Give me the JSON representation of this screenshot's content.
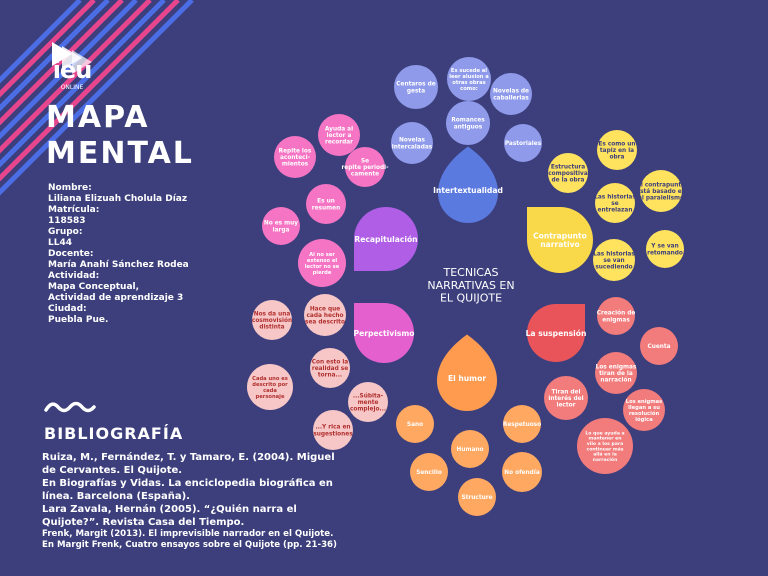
{
  "header": {
    "logo_text": "ieu",
    "logo_subtext": "ONLINE",
    "logo_icon": "ieu-logo-icon",
    "title_line1": "MAPA",
    "title_line2": "MENTAL"
  },
  "info": [
    "Nombre:",
    "Liliana Elizuah Cholula Díaz",
    "Matrícula:",
    "118583",
    "Grupo:",
    "LL44",
    "Docente:",
    "María Anahí Sánchez Rodea",
    "Actividad:",
    "Mapa Conceptual,",
    "Actividad de aprendizaje 3",
    "Ciudad:",
    "Puebla Pue."
  ],
  "bibliography": {
    "title": "BIBLIOGRAFÍA",
    "lines": [
      "Ruiza, M., Fernández, T. y Tamaro, E. (2004). Miguel",
      "de Cervantes. El Quijote.",
      "En Biografías y Vidas. La enciclopedia biográfica en",
      "línea. Barcelona (España).",
      "Lara Zavala, Hernán (2005). “¿Quién narra el",
      "Quijote?”. Revista Casa del Tiempo."
    ],
    "small_lines": [
      "Frenk, Margit (2013). El imprevisible narrador en el Quijote.",
      "En Margit Frenk, Cuatro ensayos sobre el Quijote (pp. 21-36)"
    ]
  },
  "colors": {
    "background": "#3c3f7c",
    "stripe_pink": "#e8458f",
    "stripe_blue": "#4b6ee6",
    "intertextualidad": "#5b7ae0",
    "contrapunto": "#f9d84a",
    "suspension": "#e9545a",
    "humor": "#ff9b4f",
    "perpectivismo": "#e560cf",
    "recapitulacion": "#b05ee6"
  },
  "mindmap": {
    "center": [
      "TECNICAS",
      "NARRATIVAS EN",
      "EL QUIJOTE"
    ],
    "branches": [
      {
        "label": "Intertextualidad",
        "color": "#5b7ae0",
        "bubble": "#8f9bea",
        "text": "#ffffff",
        "nodes": [
          {
            "label": [
              "Centaros de",
              "gesta"
            ]
          },
          {
            "label": [
              "Es sucede al",
              "leer alusion a",
              "otras obras",
              "como:"
            ]
          },
          {
            "label": [
              "Novelas de",
              "caballerias"
            ]
          },
          {
            "label": [
              "Romances",
              "antiguos"
            ]
          },
          {
            "label": [
              "Novelas",
              "intercaladas"
            ]
          },
          {
            "label": [
              "Pastoriales"
            ]
          }
        ]
      },
      {
        "label": "Contrapunto narrativo",
        "color": "#f9d84a",
        "bubble": "#ffe35e",
        "text": "#3c3f7c",
        "nodes": [
          {
            "label": [
              "Estructura",
              "compositiva",
              "de la obra"
            ]
          },
          {
            "label": [
              "Es como un",
              "tapiz en la",
              "obra"
            ]
          },
          {
            "label": [
              "El contrapunto",
              "está basado en",
              "el paralelismo"
            ]
          },
          {
            "label": [
              "Las historias",
              "se",
              "entrelazan"
            ]
          },
          {
            "label": [
              "Y se van",
              "retomando"
            ]
          },
          {
            "label": [
              "Las historias",
              "se van",
              "sucediendo"
            ]
          }
        ]
      },
      {
        "label": "La suspensión",
        "color": "#e9545a",
        "bubble": "#f27b7c",
        "text": "#ffffff",
        "nodes": [
          {
            "label": [
              "Creación de",
              "enigmas"
            ]
          },
          {
            "label": [
              "Cuenta"
            ]
          },
          {
            "label": [
              "Los enigmas",
              "tiran de la",
              "narración"
            ]
          },
          {
            "label": [
              "Los enigmas",
              "llegan a su",
              "resolución",
              "lógica"
            ]
          },
          {
            "label": [
              "Tiran del",
              "interés del",
              "lector"
            ]
          },
          {
            "label": [
              "Lo que ayuda a",
              "mantener en",
              "vilo a los para",
              "continuar más",
              "allá en la",
              "narración"
            ]
          }
        ]
      },
      {
        "label": "El humor",
        "color": "#ff9b4f",
        "bubble": "#ffa861",
        "text": "#ffffff",
        "nodes": [
          {
            "label": [
              "Sano"
            ]
          },
          {
            "label": [
              "Respetuoso"
            ]
          },
          {
            "label": [
              "Humano"
            ]
          },
          {
            "label": [
              "Sencillo"
            ]
          },
          {
            "label": [
              "No ofendía"
            ]
          },
          {
            "label": [
              "Structure"
            ]
          }
        ]
      },
      {
        "label": "Perpectivismo",
        "color": "#e560cf",
        "bubble": "#f7c7c7",
        "text": "#b0302f",
        "nodes": [
          {
            "label": [
              "Nos da una",
              "cosmovisión",
              "distinta"
            ]
          },
          {
            "label": [
              "Hace que",
              "cada hecho",
              "sea descrito"
            ]
          },
          {
            "label": [
              "Con esto la",
              "realidad se",
              "torna..."
            ]
          },
          {
            "label": [
              "Cada uno es",
              "descrito por",
              "cada",
              "personaje"
            ]
          },
          {
            "label": [
              "...Súbita-",
              "mente",
              "complejo..."
            ]
          },
          {
            "label": [
              "...Y rica en",
              "sugestiones"
            ]
          }
        ]
      },
      {
        "label": "Recapitulación",
        "color": "#b05ee6",
        "bubble": "#f575c4",
        "text": "#ffffff",
        "nodes": [
          {
            "label": [
              "Ayuda al",
              "lector a",
              "recordar"
            ]
          },
          {
            "label": [
              "Repite los",
              "aconteci-",
              "mientos"
            ]
          },
          {
            "label": [
              "Se",
              "repite periodi-",
              "camente"
            ]
          },
          {
            "label": [
              "Es un",
              "resumen"
            ]
          },
          {
            "label": [
              "No es muy",
              "larga"
            ]
          },
          {
            "label": [
              "Al no ser",
              "extenso el",
              "lector no se",
              "pierde"
            ]
          }
        ]
      }
    ]
  }
}
